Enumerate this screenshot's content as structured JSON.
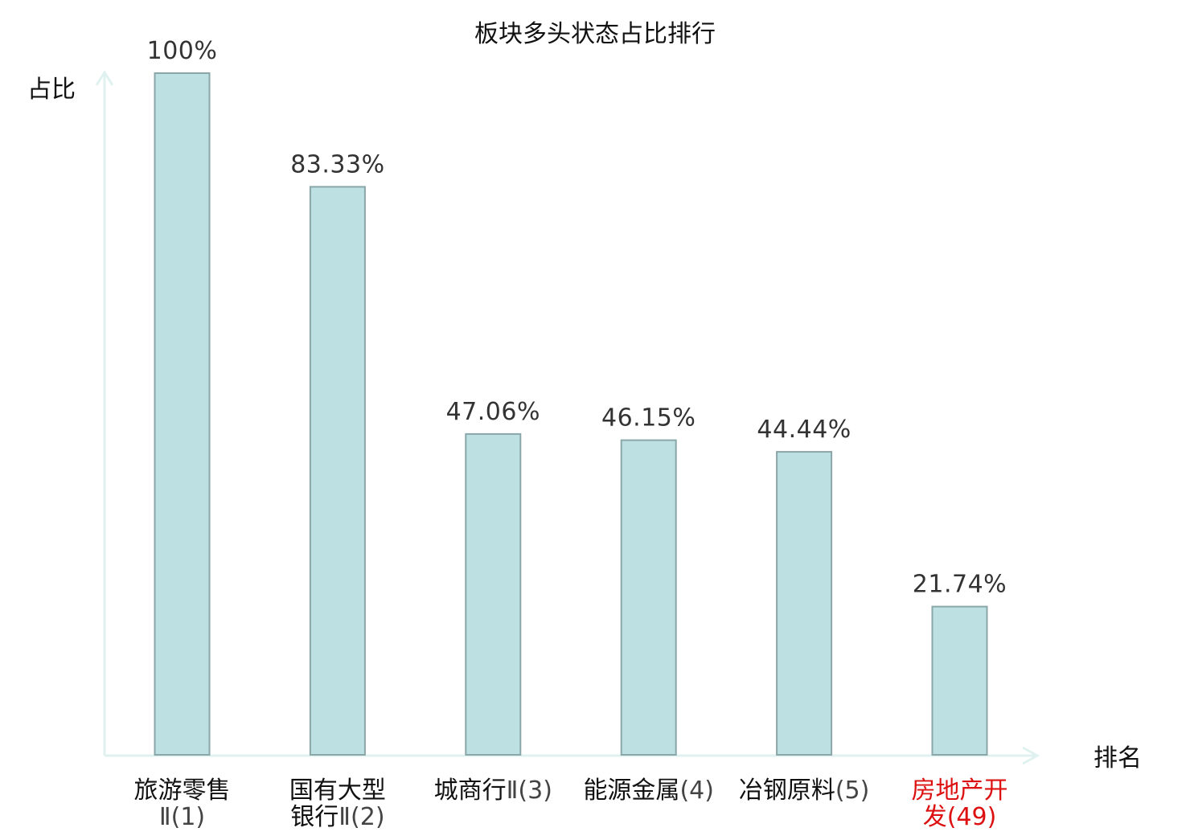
{
  "chart_data": {
    "type": "bar",
    "title": "板块多头状态占比排行",
    "xlabel": "排名",
    "ylabel": "占比",
    "ylim": [
      0,
      100
    ],
    "unit": "%",
    "grid": false,
    "categories": [
      {
        "lines": [
          {
            "name": "旅游零售",
            "rank": ""
          },
          {
            "name": "",
            "rank": "Ⅱ(1)"
          }
        ],
        "highlight": false
      },
      {
        "lines": [
          {
            "name": "国有大型",
            "rank": ""
          },
          {
            "name": "银行",
            "rank": "Ⅱ(2)"
          }
        ],
        "highlight": false
      },
      {
        "lines": [
          {
            "name": "城商行",
            "rank": "Ⅱ(3)"
          }
        ],
        "highlight": false
      },
      {
        "lines": [
          {
            "name": "能源金属",
            "rank": "(4)"
          }
        ],
        "highlight": false
      },
      {
        "lines": [
          {
            "name": "冶钢原料",
            "rank": "(5)"
          }
        ],
        "highlight": false
      },
      {
        "lines": [
          {
            "name": "房地产开",
            "rank": ""
          },
          {
            "name": "发",
            "rank": "(49)"
          }
        ],
        "highlight": true
      }
    ],
    "values": [
      100,
      83.33,
      47.06,
      46.15,
      44.44,
      21.74
    ],
    "value_labels": [
      "100%",
      "83.33%",
      "47.06%",
      "46.15%",
      "44.44%",
      "21.74%"
    ]
  },
  "colors": {
    "bar_fill": "#bde1e3",
    "bar_stroke": "#8aa6a8",
    "axis": "#e0f2ef",
    "highlight_text": "#dd1111",
    "normal_text": "#111111",
    "value_text": "#333333"
  }
}
